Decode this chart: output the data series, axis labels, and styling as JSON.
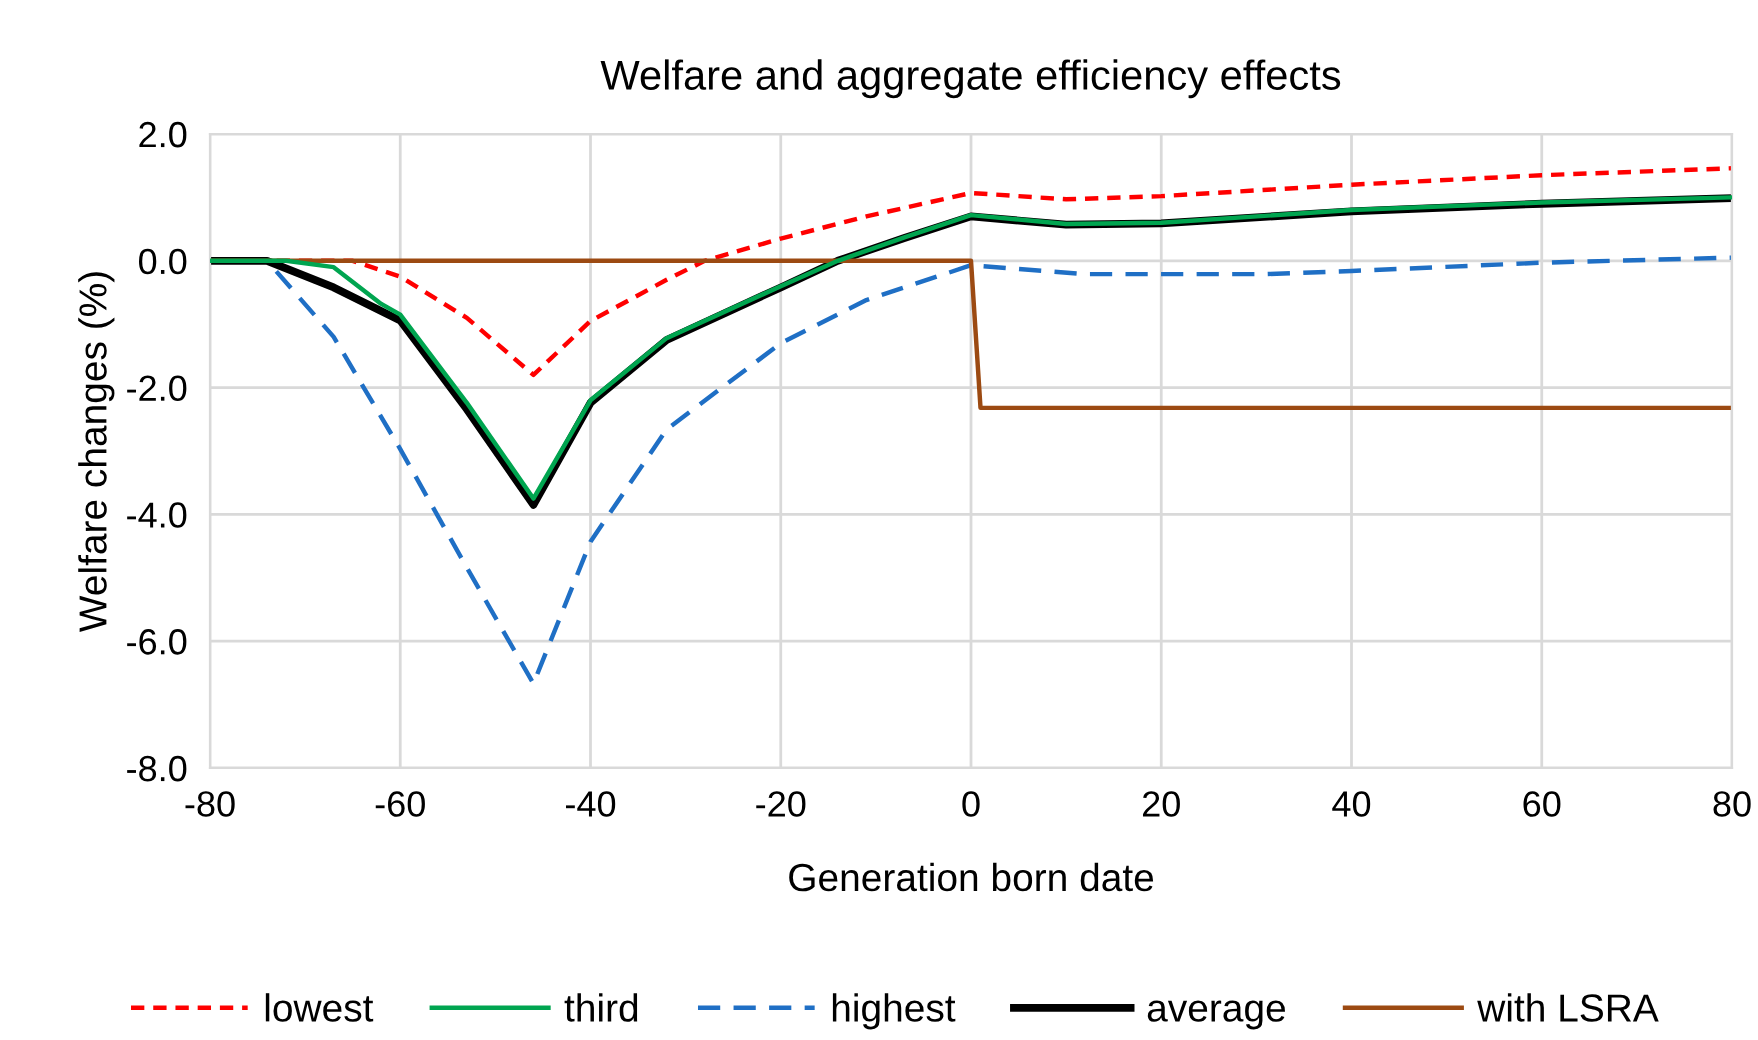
{
  "chart_data": {
    "type": "line",
    "title": "Welfare and aggregate efficiency effects",
    "xlabel": "Generation born date",
    "ylabel": "Welfare changes (%)",
    "xlim": [
      -80,
      80
    ],
    "xticks": [
      -80,
      -60,
      -40,
      -20,
      0,
      20,
      40,
      60,
      80
    ],
    "ylim": [
      -8,
      2
    ],
    "yticks": [
      {
        "value": -8,
        "label": "-8.0"
      },
      {
        "value": -6,
        "label": "-6.0"
      },
      {
        "value": -4,
        "label": "-4.0"
      },
      {
        "value": -2,
        "label": "-2.0"
      },
      {
        "value": 0,
        "label": "0.0"
      },
      {
        "value": 2,
        "label": "2.0"
      }
    ],
    "grid": true,
    "legend": "bottom",
    "marker": "none",
    "series": [
      {
        "name": "lowest",
        "color": "#ff0000",
        "line_style": "dotted",
        "x": [
          -80,
          -65,
          -60,
          -53,
          -46,
          -40,
          -32,
          -28,
          -20,
          -11,
          0,
          10,
          20,
          40,
          60,
          80
        ],
        "values": [
          0,
          0,
          -0.25,
          -0.9,
          -1.8,
          -0.95,
          -0.3,
          0,
          0.35,
          0.7,
          1.07,
          0.97,
          1.02,
          1.2,
          1.35,
          1.46
        ]
      },
      {
        "name": "third",
        "color": "#00a550",
        "line_style": "solid",
        "x": [
          -80,
          -72,
          -67,
          -62,
          -60,
          -53,
          -46,
          -40,
          -32,
          -20,
          -14,
          -7,
          0,
          10,
          20,
          40,
          60,
          80
        ],
        "values": [
          0,
          0,
          -0.1,
          -0.68,
          -0.85,
          -2.24,
          -3.75,
          -2.2,
          -1.22,
          -0.4,
          0,
          0.37,
          0.72,
          0.58,
          0.6,
          0.8,
          0.92,
          1.0
        ]
      },
      {
        "name": "highest",
        "color": "#1f6fc5",
        "line_style": "dashed",
        "x": [
          -80,
          -74,
          -67,
          -60,
          -53,
          -46,
          -40,
          -32,
          -20,
          -11,
          0,
          12,
          31,
          40,
          60,
          80
        ],
        "values": [
          0,
          0,
          -1.2,
          -2.97,
          -4.84,
          -6.67,
          -4.43,
          -2.66,
          -1.3,
          -0.62,
          -0.07,
          -0.21,
          -0.21,
          -0.16,
          -0.03,
          0.05
        ]
      },
      {
        "name": "average",
        "color": "#000000",
        "line_style": "solid",
        "x": [
          -80,
          -74,
          -67,
          -60,
          -53,
          -46,
          -40,
          -32,
          -20,
          -14,
          -7,
          0,
          10,
          20,
          40,
          60,
          80
        ],
        "values": [
          0,
          0,
          -0.42,
          -0.94,
          -2.34,
          -3.85,
          -2.24,
          -1.25,
          -0.42,
          0,
          0.36,
          0.7,
          0.57,
          0.59,
          0.78,
          0.9,
          0.99
        ]
      },
      {
        "name": "with LSRA",
        "color": "#9c4a12",
        "line_style": "solid",
        "x": [
          -80,
          0,
          1,
          80
        ],
        "values": [
          0,
          0,
          -2.32,
          -2.32
        ]
      }
    ]
  }
}
